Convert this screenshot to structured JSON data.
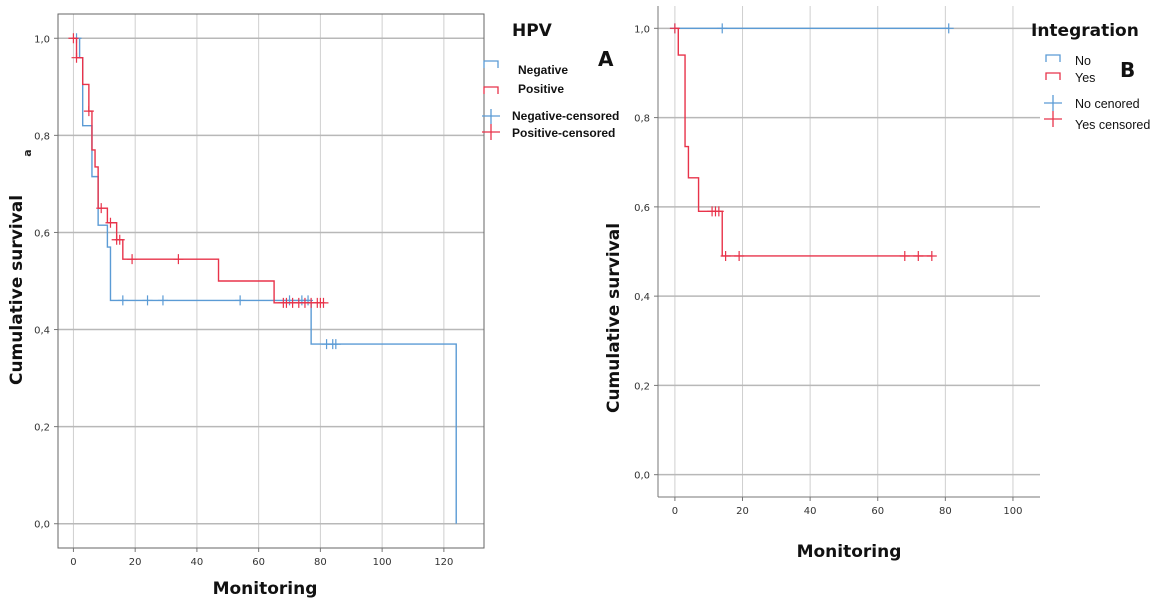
{
  "chart_data": [
    {
      "type": "line",
      "xlabel": "Monitoring",
      "ylabel": "Cumulative survival",
      "xlim": [
        -5,
        133
      ],
      "ylim": [
        -0.05,
        1.05
      ],
      "xticks": [
        0,
        20,
        40,
        60,
        80,
        100,
        120
      ],
      "yticks": [
        0.0,
        0.2,
        0.4,
        0.6,
        0.8,
        1.0
      ],
      "xtick_labels": [
        "0",
        "20",
        "40",
        "60",
        "80",
        "100",
        "120"
      ],
      "ytick_labels": [
        "0,0",
        "0,2",
        "0,4",
        "0,6",
        "0,8",
        "1,0"
      ],
      "grid": true,
      "panel_letter": "A",
      "stray_label": "a",
      "legend": {
        "title": "HPV",
        "placement": "top-right",
        "entries": [
          "Negative",
          "Positive",
          "Negative-censored",
          "Positive-censored"
        ]
      },
      "series": [
        {
          "name": "Negative",
          "color": "#5b9bd5",
          "steps": [
            [
              0,
              1.0
            ],
            [
              2,
              0.96
            ],
            [
              3,
              0.82
            ],
            [
              6,
              0.715
            ],
            [
              8,
              0.615
            ],
            [
              11,
              0.57
            ],
            [
              12,
              0.46
            ],
            [
              77,
              0.37
            ],
            [
              124,
              0.0
            ]
          ],
          "end_x": 124,
          "censored_x": [
            1,
            16,
            24,
            29,
            54,
            70,
            74,
            76,
            82,
            84,
            85
          ]
        },
        {
          "name": "Positive",
          "color": "#e8334a",
          "steps": [
            [
              0,
              1.0
            ],
            [
              1,
              0.96
            ],
            [
              3,
              0.905
            ],
            [
              5,
              0.85
            ],
            [
              6,
              0.77
            ],
            [
              7,
              0.735
            ],
            [
              8,
              0.65
            ],
            [
              11,
              0.62
            ],
            [
              14,
              0.585
            ],
            [
              16,
              0.545
            ],
            [
              47,
              0.5
            ],
            [
              65,
              0.455
            ]
          ],
          "end_x": 81,
          "censored_x": [
            0,
            1,
            5,
            9,
            12,
            14,
            15,
            19,
            34,
            68,
            69,
            71,
            73,
            75,
            77,
            79,
            80,
            81
          ]
        }
      ]
    },
    {
      "type": "line",
      "xlabel": "Monitoring",
      "ylabel": "Cumulative survival",
      "xlim": [
        -5,
        108
      ],
      "ylim": [
        -0.05,
        1.05
      ],
      "xticks": [
        0,
        20,
        40,
        60,
        80,
        100
      ],
      "yticks": [
        0.0,
        0.2,
        0.4,
        0.6,
        0.8,
        1.0
      ],
      "xtick_labels": [
        "0",
        "20",
        "40",
        "60",
        "80",
        "100"
      ],
      "ytick_labels": [
        "0,0",
        "0,2",
        "0,4",
        "0,6",
        "0,8",
        "1,0"
      ],
      "grid": true,
      "panel_letter": "B",
      "legend": {
        "title": "Integration",
        "placement": "top-right",
        "entries": [
          "No",
          "Yes",
          "No cenored",
          "Yes censored"
        ]
      },
      "series": [
        {
          "name": "No",
          "color": "#5b9bd5",
          "steps": [
            [
              0,
              1.0
            ]
          ],
          "end_x": 81,
          "censored_x": [
            0,
            14,
            81
          ]
        },
        {
          "name": "Yes",
          "color": "#e8334a",
          "steps": [
            [
              0,
              1.0
            ],
            [
              1,
              0.94
            ],
            [
              3,
              0.735
            ],
            [
              4,
              0.665
            ],
            [
              7,
              0.59
            ],
            [
              14,
              0.49
            ]
          ],
          "end_x": 76,
          "censored_x": [
            0,
            11,
            12,
            13,
            15,
            19,
            68,
            72,
            76
          ]
        }
      ]
    }
  ]
}
